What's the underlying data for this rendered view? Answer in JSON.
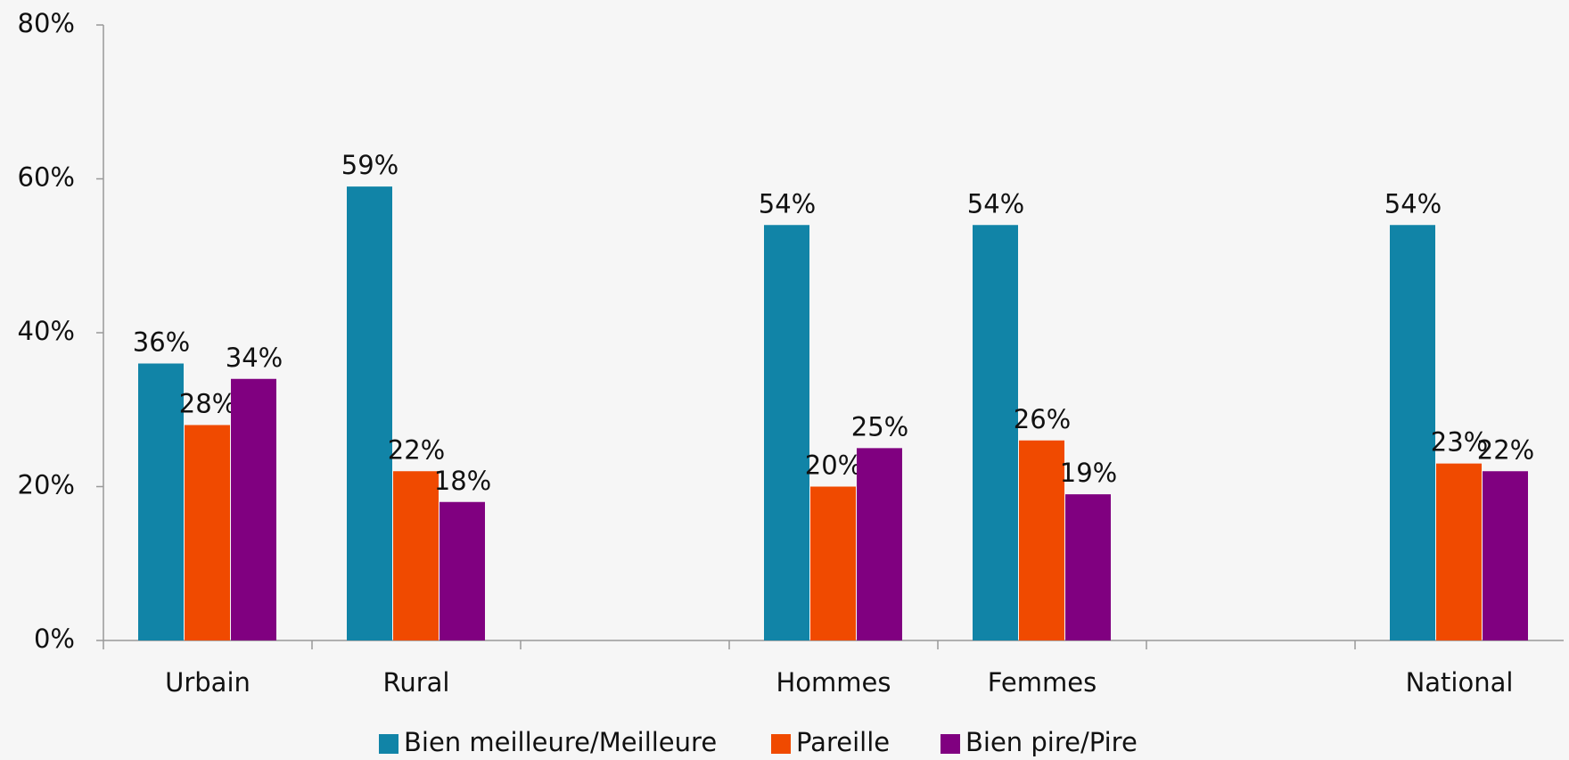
{
  "chart_data": {
    "type": "bar",
    "categories": [
      "Urbain",
      "Rural",
      null,
      "Hommes",
      "Femmes",
      null,
      "National"
    ],
    "series": [
      {
        "name": "Bien meilleure/Meilleure",
        "color": "#1184a7",
        "values": [
          36,
          59,
          null,
          54,
          54,
          null,
          54
        ],
        "value_labels": [
          "36%",
          "59%",
          null,
          "54%",
          "54%",
          null,
          "54%"
        ]
      },
      {
        "name": "Pareille",
        "color": "#f04a00",
        "values": [
          28,
          22,
          null,
          20,
          26,
          null,
          23
        ],
        "value_labels": [
          "28%",
          "22%",
          null,
          "20%",
          "26%",
          null,
          "23%"
        ]
      },
      {
        "name": "Bien pire/Pire",
        "color": "#800080",
        "values": [
          34,
          18,
          null,
          25,
          19,
          null,
          22
        ],
        "value_labels": [
          "34%",
          "18%",
          null,
          "25%",
          "19%",
          null,
          "22%"
        ]
      }
    ],
    "ylim": [
      0,
      80
    ],
    "yticks": [
      {
        "value": 0,
        "label": "0%"
      },
      {
        "value": 20,
        "label": "20%"
      },
      {
        "value": 40,
        "label": "40%"
      },
      {
        "value": 60,
        "label": "60%"
      },
      {
        "value": 80,
        "label": "80%"
      }
    ],
    "grid": false,
    "legend": "bottom"
  }
}
